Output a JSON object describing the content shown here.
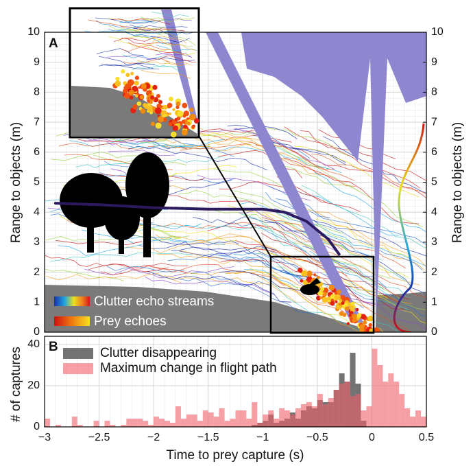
{
  "chart_data": [
    {
      "type": "line",
      "label": "A",
      "ylabel": "Range to objects (m)",
      "y2label": "Range to objects (m)",
      "legend": [
        "Clutter echo streams",
        "Prey echoes"
      ],
      "xlim": [
        -3,
        0.5
      ],
      "ylim": [
        0,
        10
      ],
      "y2lim": [
        0,
        10
      ],
      "yticks": [
        0,
        1,
        2,
        3,
        4,
        5,
        6,
        7,
        8,
        9,
        10
      ],
      "y2ticks": [
        0,
        1,
        2,
        3,
        4,
        5,
        6,
        7,
        8,
        9,
        10
      ],
      "x": [
        -2.9,
        -2.5,
        -2,
        -1.5,
        -1,
        -0.8,
        -0.6,
        -0.4,
        -0.3
      ],
      "values": [
        4.3,
        4.25,
        4.15,
        4.1,
        4.1,
        4.0,
        3.7,
        3.1,
        2.6
      ],
      "color": "#2b1a5e",
      "grid": true
    },
    {
      "type": "histogram",
      "label": "B",
      "ylabel": "# of captures",
      "xlabel": "Time to prey capture (s)",
      "xlim": [
        -3,
        0.5
      ],
      "ylim": [
        0,
        44
      ],
      "yticks": [
        0,
        20,
        40
      ],
      "xticks": [
        {
          "value": -3,
          "label": "−3"
        },
        {
          "value": -2.5,
          "label": "−2.5"
        },
        {
          "value": -2,
          "label": "−2"
        },
        {
          "value": -1.5,
          "label": "−1.5"
        },
        {
          "value": -1,
          "label": "−1"
        },
        {
          "value": -0.5,
          "label": "−0.5"
        },
        0,
        0.5
      ],
      "bins": [
        -3,
        -2.95,
        -2.9,
        -2.85,
        -2.8,
        -2.75,
        -2.7,
        -2.65,
        -2.6,
        -2.55,
        -2.5,
        -2.45,
        -2.4,
        -2.35,
        -2.3,
        -2.25,
        -2.2,
        -2.15,
        -2.1,
        -2.05,
        -2,
        -1.95,
        -1.9,
        -1.85,
        -1.8,
        -1.75,
        -1.7,
        -1.65,
        -1.6,
        -1.55,
        -1.5,
        -1.45,
        -1.4,
        -1.35,
        -1.3,
        -1.25,
        -1.2,
        -1.15,
        -1.1,
        -1.05,
        -1,
        -0.95,
        -0.9,
        -0.85,
        -0.8,
        -0.75,
        -0.7,
        -0.65,
        -0.6,
        -0.55,
        -0.5,
        -0.45,
        -0.4,
        -0.35,
        -0.3,
        -0.25,
        -0.2,
        -0.15,
        -0.1,
        -0.05,
        0,
        0.05,
        0.1,
        0.15,
        0.2,
        0.25,
        0.3,
        0.35,
        0.4,
        0.45,
        0.5
      ],
      "series": [
        {
          "name": "Clutter disappearing",
          "color": "#5a5a5a",
          "values": [
            0,
            0,
            0,
            0,
            0,
            0,
            0,
            0,
            0,
            0,
            0,
            0,
            0,
            0,
            0,
            0,
            0,
            0,
            0,
            0,
            0,
            0,
            0,
            0,
            0,
            0,
            0,
            0,
            0,
            0,
            0,
            0,
            0,
            0,
            0,
            0,
            0,
            0,
            1,
            2,
            3,
            6,
            2,
            3,
            4,
            7,
            4,
            8,
            10,
            9,
            13,
            12,
            12,
            18,
            26,
            22,
            36,
            21,
            3,
            0,
            0,
            0,
            0,
            0,
            0,
            0,
            0,
            0,
            0,
            0
          ]
        },
        {
          "name": "Maximum change in flight path",
          "color": "#f0606a",
          "values": [
            4,
            0,
            1,
            0,
            0,
            5,
            1,
            0,
            0,
            3,
            0,
            3,
            1,
            0,
            1,
            4,
            4,
            4,
            3,
            1,
            5,
            4,
            3,
            2,
            10,
            4,
            6,
            6,
            3,
            8,
            7,
            5,
            9,
            3,
            4,
            8,
            8,
            4,
            12,
            2,
            6,
            8,
            4,
            9,
            8,
            6,
            9,
            11,
            12,
            10,
            16,
            11,
            14,
            18,
            21,
            22,
            15,
            16,
            8,
            10,
            38,
            30,
            22,
            26,
            22,
            16,
            9,
            5,
            8,
            5
          ]
        }
      ],
      "grid": true
    }
  ]
}
